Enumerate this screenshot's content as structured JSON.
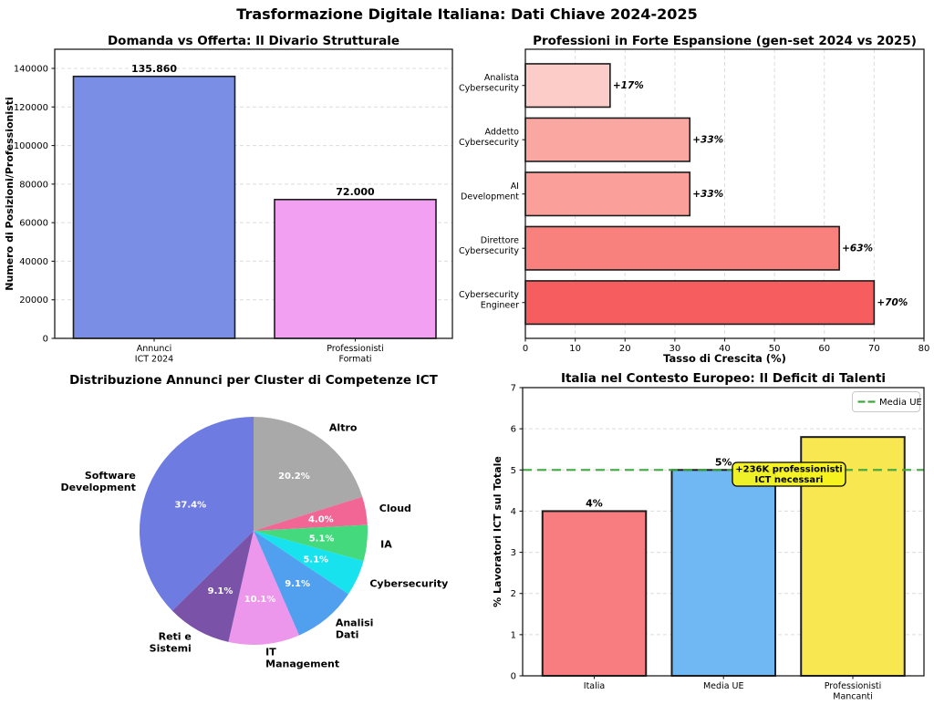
{
  "figure_title": "Trasformazione Digitale Italiana: Dati Chiave 2024-2025",
  "chart_data": [
    {
      "id": "domanda-offerta",
      "type": "bar",
      "title": "Domanda vs Offerta: Il Divario Strutturale",
      "ylabel": "Numero di Posizioni/Professionisti",
      "categories": [
        "Annunci\nICT 2024",
        "Professionisti\nFormati"
      ],
      "values": [
        135860,
        72000
      ],
      "value_labels": [
        "135.860",
        "72.000"
      ],
      "bar_colors": [
        "#7B8EE6",
        "#F2A0F2"
      ],
      "ylim": [
        0,
        150000
      ],
      "yticks": [
        0,
        20000,
        40000,
        60000,
        80000,
        100000,
        120000,
        140000
      ],
      "grid": "horizontal-dashed"
    },
    {
      "id": "professioni-espansione",
      "type": "barh",
      "title": "Professioni in Forte Espansione (gen-set 2024 vs 2025)",
      "xlabel": "Tasso di Crescita (%)",
      "categories": [
        "Analista\nCybersecurity",
        "Addetto\nCybersecurity",
        "AI\nDevelopment",
        "Direttore\nCybersecurity",
        "Cybersecurity\nEngineer"
      ],
      "values": [
        17,
        33,
        33,
        63,
        70
      ],
      "value_labels": [
        "+17%",
        "+33%",
        "+33%",
        "+63%",
        "+70%"
      ],
      "bar_colors": [
        "#FCCCC8",
        "#FBA7A1",
        "#FA9F99",
        "#F8807D",
        "#F65D5E"
      ],
      "xlim": [
        0,
        80
      ],
      "xticks": [
        0,
        10,
        20,
        30,
        40,
        50,
        60,
        70,
        80
      ],
      "grid": "vertical-dashed"
    },
    {
      "id": "cluster-competenze",
      "type": "pie",
      "title": "Distribuzione Annunci per Cluster di Competenze ICT",
      "start_angle": 90,
      "direction": "clockwise",
      "slices": [
        {
          "label": "Altro",
          "pct": 20.2,
          "pct_label": "20.2%",
          "color": "#A9A9A9"
        },
        {
          "label": "Cloud",
          "pct": 4.0,
          "pct_label": "4.0%",
          "color": "#F26695"
        },
        {
          "label": "IA",
          "pct": 5.1,
          "pct_label": "5.1%",
          "color": "#45D97D"
        },
        {
          "label": "Cybersecurity",
          "pct": 5.1,
          "pct_label": "5.1%",
          "color": "#17E2EE"
        },
        {
          "label": "Analisi\nDati",
          "pct": 9.1,
          "pct_label": "9.1%",
          "color": "#519FEF"
        },
        {
          "label": "IT\nManagement",
          "pct": 10.1,
          "pct_label": "10.1%",
          "color": "#EC96EC"
        },
        {
          "label": "Reti e\nSistemi",
          "pct": 9.1,
          "pct_label": "9.1%",
          "color": "#7A52A8"
        },
        {
          "label": "Software\nDevelopment",
          "pct": 37.4,
          "pct_label": "37.4%",
          "color": "#6E7BE0"
        }
      ]
    },
    {
      "id": "contesto-europeo",
      "type": "bar",
      "title": "Italia nel Contesto Europeo: Il Deficit di Talenti",
      "ylabel": "% Lavoratori ICT sul Totale",
      "categories": [
        "Italia",
        "Media UE",
        "Professionisti\nMancanti"
      ],
      "values": [
        4,
        5,
        5.8
      ],
      "value_labels": [
        "4%",
        "5%",
        ""
      ],
      "bar_colors": [
        "#F87D81",
        "#70B8F4",
        "#F8E751"
      ],
      "ylim": [
        0,
        7
      ],
      "yticks": [
        0,
        1,
        2,
        3,
        4,
        5,
        6,
        7
      ],
      "reference_line": {
        "value": 5,
        "color": "#3CA53C",
        "style": "dashed",
        "label": "Media UE"
      },
      "legend": {
        "items": [
          {
            "label": "Media UE",
            "color": "#3CA53C",
            "style": "dashed"
          }
        ],
        "position": "upper-right"
      },
      "annotation": {
        "text": "+236K professionisti\nICT necessari",
        "fill": "#F4F21C",
        "border": "#000000"
      },
      "grid": "horizontal-dashed"
    }
  ]
}
